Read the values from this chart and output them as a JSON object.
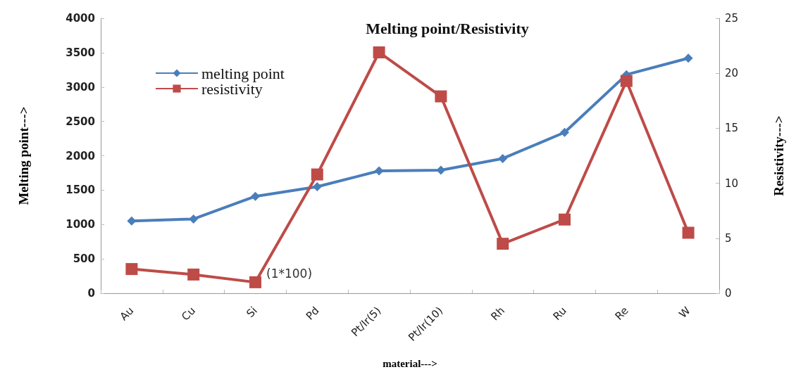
{
  "chart_data": {
    "type": "line",
    "title": "Melting point/Resistivity",
    "xlabel": "material--->",
    "ylabel": "Melting point--->",
    "y2label": "Resistivity--->",
    "categories": [
      "Au",
      "Cu",
      "Si",
      "Pd",
      "Pt/Ir(5)",
      "Pt/Ir(10)",
      "Rh",
      "Ru",
      "Re",
      "W"
    ],
    "series": [
      {
        "name": "melting point",
        "color": "#4a7ebb",
        "marker": "diamond",
        "values": [
          1050,
          1080,
          1410,
          1550,
          1780,
          1790,
          1960,
          2340,
          3180,
          3420
        ]
      },
      {
        "name": "resistivity",
        "color": "#be4b48",
        "marker": "square",
        "axis": "y2",
        "values": [
          2.2,
          1.7,
          1.0,
          10.8,
          21.9,
          17.9,
          4.5,
          6.7,
          19.3,
          5.5
        ]
      }
    ],
    "ylim": [
      0,
      4000
    ],
    "yticks": [
      0,
      500,
      1000,
      1500,
      2000,
      2500,
      3000,
      3500,
      4000
    ],
    "y2lim": [
      0,
      25
    ],
    "y2ticks": [
      0,
      5,
      10,
      15,
      20,
      25
    ],
    "annotations": [
      "(1*100)"
    ],
    "legend": "top left",
    "grid": false
  }
}
